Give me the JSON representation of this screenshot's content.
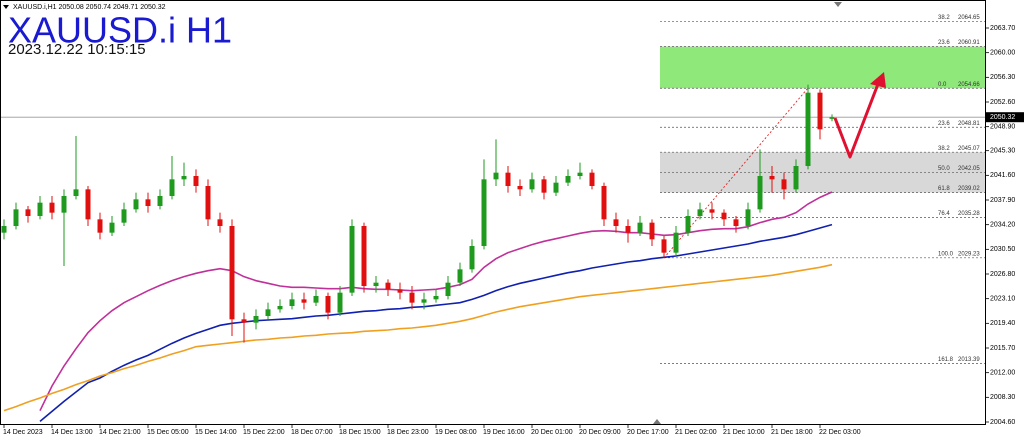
{
  "chart_data": {
    "type": "candlestick",
    "header": "XAUUSD.i,H1  2050.08 2050.74 2049.71 2050.32",
    "title": "XAUUSD.i H1",
    "subtitle": "2023.12.22 10:15:15",
    "categories": [
      "14 Dec 2023",
      null,
      null,
      null,
      "14 Dec 13:00",
      null,
      null,
      null,
      "14 Dec 21:00",
      null,
      null,
      null,
      "15 Dec 05:00",
      null,
      null,
      null,
      "15 Dec 14:00",
      null,
      null,
      null,
      "15 Dec 22:00",
      null,
      null,
      null,
      "18 Dec 07:00",
      null,
      null,
      null,
      "18 Dec 15:00",
      null,
      null,
      null,
      "18 Dec 23:00",
      null,
      null,
      null,
      "19 Dec 08:00",
      null,
      null,
      null,
      "19 Dec 16:00",
      null,
      null,
      null,
      "20 Dec 01:00",
      null,
      null,
      null,
      "20 Dec 09:00",
      null,
      null,
      null,
      "20 Dec 17:00",
      null,
      null,
      null,
      "21 Dec 02:00",
      null,
      null,
      null,
      "21 Dec 10:00",
      null,
      null,
      null,
      "21 Dec 18:00",
      null,
      null,
      null,
      "22 Dec 03:00",
      null
    ],
    "open": [
      2033.0,
      2034.0,
      2036.5,
      2035.5,
      2037.5,
      2036.0,
      2038.5,
      2039.5,
      2035.0,
      2033.0,
      2034.5,
      2036.5,
      2038.0,
      2037.0,
      2038.5,
      2041.0,
      2041.5,
      2040.0,
      2035.0,
      2034.0,
      2020.0,
      2019.5,
      2020.5,
      2021.5,
      2022.0,
      2023.0,
      2022.5,
      2023.5,
      2021.0,
      2024.0,
      2034.0,
      2025.0,
      2025.5,
      2024.5,
      2024.0,
      2022.5,
      2023.0,
      2023.5,
      2025.5,
      2027.5,
      2031.0,
      2041.0,
      2042.0,
      2040.0,
      2039.5,
      2041.0,
      2039.0,
      2040.5,
      2041.5,
      2042.0,
      2040.0,
      2035.0,
      2034.0,
      2033.0,
      2034.5,
      2032.0,
      2030.0,
      2033.0,
      2035.5,
      2036.5,
      2036.0,
      2035.0,
      2034.0,
      2036.5,
      2041.5,
      2041.0,
      2039.5,
      2043.0,
      2054.0,
      2050.08
    ],
    "high": [
      2035.0,
      2037.5,
      2037.0,
      2038.5,
      2038.5,
      2039.5,
      2047.5,
      2040.0,
      2036.0,
      2035.5,
      2037.5,
      2039.0,
      2039.0,
      2039.5,
      2044.5,
      2043.5,
      2042.5,
      2041.0,
      2036.0,
      2035.0,
      2021.0,
      2021.5,
      2022.5,
      2023.0,
      2024.0,
      2024.0,
      2024.5,
      2024.0,
      2025.0,
      2035.0,
      2034.5,
      2026.5,
      2026.0,
      2025.5,
      2025.0,
      2024.0,
      2024.5,
      2026.5,
      2028.5,
      2032.0,
      2044.0,
      2047.0,
      2043.0,
      2041.0,
      2042.0,
      2041.5,
      2041.5,
      2042.5,
      2043.5,
      2042.5,
      2040.5,
      2036.0,
      2035.0,
      2035.5,
      2035.0,
      2032.5,
      2034.0,
      2036.5,
      2037.5,
      2037.5,
      2036.5,
      2035.5,
      2037.5,
      2045.5,
      2043.0,
      2042.0,
      2044.0,
      2055.2,
      2054.5,
      2050.74
    ],
    "low": [
      2032.0,
      2033.5,
      2034.5,
      2035.0,
      2035.0,
      2028.0,
      2038.0,
      2034.0,
      2032.0,
      2032.5,
      2034.0,
      2036.0,
      2036.0,
      2036.5,
      2038.0,
      2040.0,
      2039.0,
      2034.0,
      2033.0,
      2017.5,
      2016.5,
      2018.5,
      2020.0,
      2021.0,
      2021.5,
      2021.5,
      2022.0,
      2020.0,
      2020.5,
      2023.5,
      2024.0,
      2024.0,
      2023.5,
      2023.0,
      2021.5,
      2021.5,
      2022.5,
      2023.0,
      2025.0,
      2027.0,
      2030.5,
      2040.0,
      2039.0,
      2038.5,
      2039.0,
      2038.0,
      2038.5,
      2040.0,
      2041.0,
      2039.5,
      2034.0,
      2033.0,
      2031.5,
      2032.5,
      2031.0,
      2029.23,
      2029.5,
      2032.5,
      2035.0,
      2035.0,
      2034.0,
      2033.0,
      2033.5,
      2036.0,
      2039.0,
      2038.0,
      2039.0,
      2042.5,
      2047.0,
      2049.71
    ],
    "close": [
      2034.0,
      2036.5,
      2035.5,
      2037.5,
      2036.0,
      2038.5,
      2039.5,
      2035.0,
      2033.0,
      2034.5,
      2036.5,
      2038.0,
      2037.0,
      2038.5,
      2041.0,
      2041.5,
      2040.0,
      2035.0,
      2034.0,
      2020.0,
      2019.5,
      2020.5,
      2021.5,
      2022.0,
      2023.0,
      2022.5,
      2023.5,
      2021.0,
      2024.0,
      2034.0,
      2025.0,
      2025.5,
      2024.5,
      2024.0,
      2022.5,
      2023.0,
      2023.5,
      2025.5,
      2027.5,
      2031.0,
      2041.0,
      2042.0,
      2040.0,
      2039.5,
      2041.0,
      2039.0,
      2040.5,
      2041.5,
      2042.0,
      2040.0,
      2035.0,
      2034.0,
      2033.0,
      2034.5,
      2032.0,
      2030.0,
      2033.0,
      2035.5,
      2036.5,
      2036.0,
      2035.0,
      2034.0,
      2036.5,
      2041.5,
      2041.0,
      2039.5,
      2043.0,
      2054.0,
      2048.5,
      2050.32
    ],
    "up_color": "#1f9a1f",
    "down_color": "#e01010",
    "series": [
      {
        "color": "#c0309a",
        "values": [
          null,
          null,
          null,
          2006.3,
          2010.0,
          2013.0,
          2015.6,
          2018.0,
          2019.8,
          2021.3,
          2022.5,
          2023.4,
          2024.3,
          2025.1,
          2025.8,
          2026.4,
          2026.9,
          2027.3,
          2027.6,
          2027.3,
          2026.4,
          2025.8,
          2025.4,
          2025.0,
          2024.8,
          2024.8,
          2024.7,
          2024.6,
          2024.6,
          2024.8,
          2024.6,
          2024.5,
          2024.5,
          2024.4,
          2024.3,
          2024.4,
          2024.5,
          2024.8,
          2025.2,
          2026.0,
          2027.8,
          2029.1,
          2030.0,
          2030.6,
          2031.2,
          2031.7,
          2032.1,
          2032.5,
          2032.9,
          2033.2,
          2033.3,
          2033.2,
          2033.0,
          2033.0,
          2032.8,
          2032.6,
          2032.7,
          2033.0,
          2033.3,
          2033.5,
          2033.6,
          2033.6,
          2033.9,
          2034.5,
          2035.0,
          2035.3,
          2036.0,
          2037.3,
          2038.3,
          2039.1
        ]
      },
      {
        "color": "#1020b0",
        "values": [
          null,
          null,
          null,
          2004.7,
          2006.2,
          2007.7,
          2009.1,
          2010.5,
          2011.2,
          2012.2,
          2013.1,
          2013.9,
          2014.6,
          2015.5,
          2016.4,
          2017.2,
          2017.9,
          2018.5,
          2019.1,
          2019.4,
          2019.6,
          2019.8,
          2019.9,
          2020.0,
          2020.1,
          2020.3,
          2020.5,
          2020.6,
          2020.8,
          2021.0,
          2021.2,
          2021.3,
          2021.5,
          2021.6,
          2021.8,
          2021.9,
          2022.1,
          2022.3,
          2022.5,
          2023.0,
          2023.6,
          2024.3,
          2024.9,
          2025.4,
          2025.8,
          2026.2,
          2026.6,
          2027.0,
          2027.3,
          2027.7,
          2028.0,
          2028.3,
          2028.6,
          2028.8,
          2029.1,
          2029.3,
          2029.5,
          2029.8,
          2030.1,
          2030.4,
          2030.7,
          2031.0,
          2031.3,
          2031.7,
          2032.0,
          2032.3,
          2032.7,
          2033.2,
          2033.7,
          2034.2
        ]
      },
      {
        "color": "#f0a020",
        "values": [
          2006.3,
          2006.9,
          2007.6,
          2008.2,
          2008.9,
          2009.5,
          2010.2,
          2010.8,
          2011.5,
          2012.0,
          2012.6,
          2013.1,
          2013.7,
          2014.2,
          2014.8,
          2015.3,
          2015.9,
          2016.1,
          2016.3,
          2016.5,
          2016.7,
          2016.9,
          2017.0,
          2017.2,
          2017.3,
          2017.5,
          2017.6,
          2017.8,
          2017.9,
          2018.0,
          2018.2,
          2018.3,
          2018.4,
          2018.6,
          2018.7,
          2018.9,
          2019.1,
          2019.4,
          2019.7,
          2020.1,
          2020.6,
          2021.1,
          2021.5,
          2021.9,
          2022.2,
          2022.5,
          2022.8,
          2023.1,
          2023.4,
          2023.6,
          2023.8,
          2024.0,
          2024.2,
          2024.4,
          2024.6,
          2024.8,
          2025.0,
          2025.2,
          2025.4,
          2025.6,
          2025.8,
          2026.0,
          2026.2,
          2026.4,
          2026.6,
          2026.9,
          2027.2,
          2027.5,
          2027.8,
          2028.2
        ]
      }
    ],
    "ylim": [
      2004.3,
      2066.4
    ],
    "yticks": [
      {
        "value": 2063.7,
        "label": "2063.70"
      },
      {
        "value": 2060.0,
        "label": "2060.00"
      },
      {
        "value": 2056.3,
        "label": "2056.30"
      },
      {
        "value": 2052.6,
        "label": "2052.60"
      },
      {
        "value": 2048.9,
        "label": "2048.90"
      },
      {
        "value": 2045.3,
        "label": "2045.30"
      },
      {
        "value": 2041.6,
        "label": "2041.60"
      },
      {
        "value": 2037.9,
        "label": "2037.90"
      },
      {
        "value": 2034.2,
        "label": "2034.20"
      },
      {
        "value": 2030.5,
        "label": "2030.50"
      },
      {
        "value": 2026.8,
        "label": "2026.80"
      },
      {
        "value": 2023.1,
        "label": "2023.10"
      },
      {
        "value": 2019.4,
        "label": "2019.40"
      },
      {
        "value": 2015.7,
        "label": "2015.70"
      },
      {
        "value": 2012.0,
        "label": "2012.00"
      },
      {
        "value": 2008.3,
        "label": "2008.30"
      },
      {
        "value": 2004.6,
        "label": "2004.60"
      }
    ],
    "last_price": 2050.32,
    "fibonacci": [
      {
        "ratio": "38.2",
        "price": 2064.65
      },
      {
        "ratio": "23.6",
        "price": 2060.91
      },
      {
        "ratio": "0.0",
        "price": 2054.66
      },
      {
        "ratio": "23.6",
        "price": 2048.81
      },
      {
        "ratio": "38.2",
        "price": 2045.07
      },
      {
        "ratio": "50.0",
        "price": 2042.05
      },
      {
        "ratio": "61.8",
        "price": 2039.02
      },
      {
        "ratio": "76.4",
        "price": 2035.28
      },
      {
        "ratio": "100.0",
        "price": 2029.23
      },
      {
        "ratio": "161.8",
        "price": 2013.39
      }
    ],
    "zones": [
      {
        "color": "#8ee87a",
        "top": 2060.91,
        "bottom": 2054.66
      },
      {
        "color": "#d8d8d8",
        "top": 2045.07,
        "bottom": 2039.02
      }
    ]
  }
}
